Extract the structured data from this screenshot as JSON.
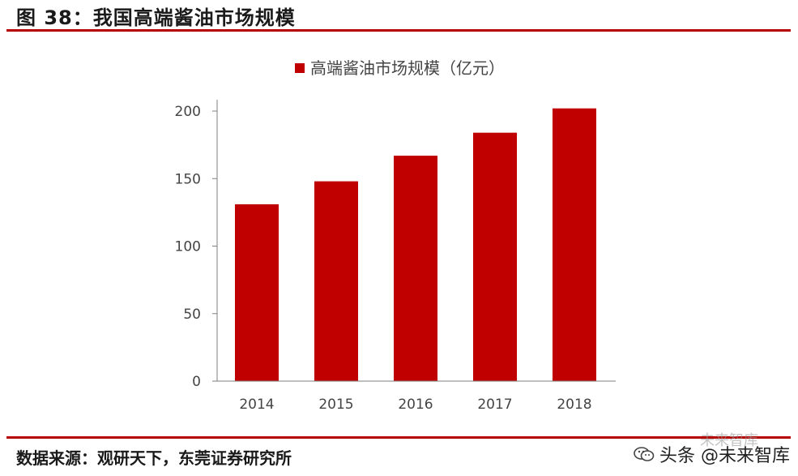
{
  "figure_title": "图 38：我国高端酱油市场规模",
  "source_text": "数据来源：观研天下，东莞证券研究所",
  "watermark": {
    "main_text": "头条 @未来智库",
    "faded_text": "未来智库",
    "icon": "wechat-logo-icon"
  },
  "colors": {
    "accent": "#b50000",
    "bar": "#c00000",
    "axis": "#7f7f7f"
  },
  "chart_data": {
    "type": "bar",
    "categories": [
      "2014",
      "2015",
      "2016",
      "2017",
      "2018"
    ],
    "series": [
      {
        "name": "高端酱油市场规模（亿元）",
        "values": [
          131,
          148,
          167,
          184,
          202
        ]
      }
    ],
    "title": "",
    "xlabel": "",
    "ylabel": "",
    "ylim": [
      0,
      200
    ],
    "yticks": [
      0,
      50,
      100,
      150,
      200
    ],
    "legend_position": "top",
    "grid": false
  }
}
